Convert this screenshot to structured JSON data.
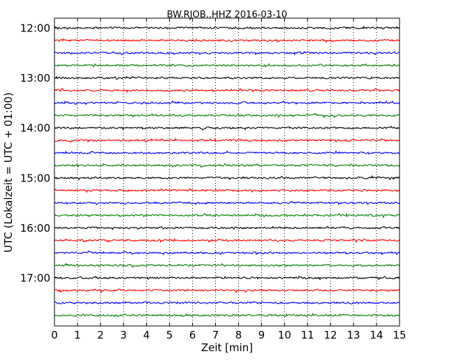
{
  "chart_data": {
    "type": "line",
    "title": "BW.RJOB..HHZ 2016-03-10",
    "xlabel": "Zeit  [min]",
    "ylabel": "UTC (Lokalzeit = UTC + 01:00)",
    "xlim": [
      0,
      15
    ],
    "x_ticks": [
      "0",
      "1",
      "2",
      "3",
      "4",
      "5",
      "6",
      "7",
      "8",
      "9",
      "10",
      "11",
      "12",
      "13",
      "14",
      "15"
    ],
    "y_ticks": [
      "12:00",
      "13:00",
      "14:00",
      "15:00",
      "16:00",
      "17:00"
    ],
    "grid": {
      "vertical_dotted": true
    },
    "trace_colors": [
      "#000000",
      "#ff0000",
      "#0000ff",
      "#008000"
    ],
    "traces": [
      {
        "start": "12:00"
      },
      {
        "start": "12:15"
      },
      {
        "start": "12:30"
      },
      {
        "start": "12:45"
      },
      {
        "start": "13:00"
      },
      {
        "start": "13:15"
      },
      {
        "start": "13:30"
      },
      {
        "start": "13:45"
      },
      {
        "start": "14:00"
      },
      {
        "start": "14:15"
      },
      {
        "start": "14:30"
      },
      {
        "start": "14:45"
      },
      {
        "start": "15:00"
      },
      {
        "start": "15:15"
      },
      {
        "start": "15:30"
      },
      {
        "start": "15:45"
      },
      {
        "start": "16:00"
      },
      {
        "start": "16:15"
      },
      {
        "start": "16:30"
      },
      {
        "start": "16:45"
      },
      {
        "start": "17:00"
      },
      {
        "start": "17:15"
      },
      {
        "start": "17:30"
      },
      {
        "start": "17:45"
      }
    ]
  }
}
